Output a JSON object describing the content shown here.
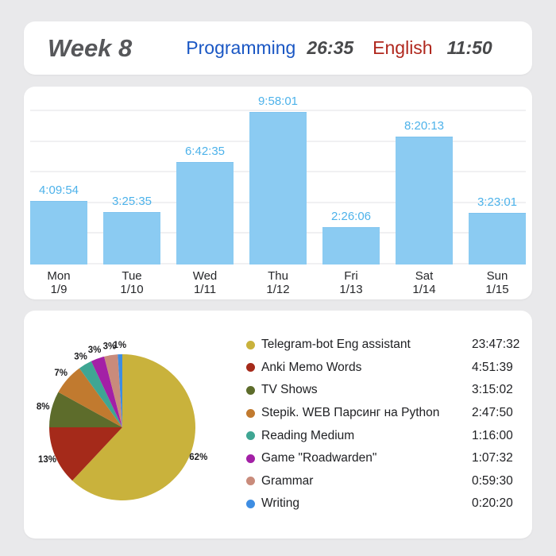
{
  "header": {
    "title": "Week 8",
    "stats": [
      {
        "label": "Programming",
        "value": "26:35",
        "label_color": "#1A57C4"
      },
      {
        "label": "English",
        "value": "11:50",
        "label_color": "#B0281E"
      }
    ]
  },
  "chart_data": [
    {
      "type": "bar",
      "days": [
        {
          "day": "Mon",
          "date": "1/9",
          "value_label": "4:09:54",
          "seconds": 14994
        },
        {
          "day": "Tue",
          "date": "1/10",
          "value_label": "3:25:35",
          "seconds": 12335
        },
        {
          "day": "Wed",
          "date": "1/11",
          "value_label": "6:42:35",
          "seconds": 24155
        },
        {
          "day": "Thu",
          "date": "1/12",
          "value_label": "9:58:01",
          "seconds": 35881
        },
        {
          "day": "Fri",
          "date": "1/13",
          "value_label": "2:26:06",
          "seconds": 8766
        },
        {
          "day": "Sat",
          "date": "1/14",
          "value_label": "8:20:13",
          "seconds": 30013
        },
        {
          "day": "Sun",
          "date": "1/15",
          "value_label": "3:23:01",
          "seconds": 12181
        }
      ],
      "ylim_hours": [
        0,
        11.6
      ],
      "gridline_every_hours": 2,
      "grid": true,
      "bar_color": "#8BCBF2",
      "value_label_color": "#4DB2EA"
    },
    {
      "type": "pie",
      "start_angle": "top-clockwise",
      "legend_position": "right",
      "slices": [
        {
          "label": "Telegram-bot Eng assistant",
          "time": "23:47:32",
          "percent": 62,
          "color": "#C9B23C"
        },
        {
          "label": "Anki Memo Words",
          "time": "4:51:39",
          "percent": 13,
          "color": "#A52A1A"
        },
        {
          "label": "TV Shows",
          "time": "3:15:02",
          "percent": 8,
          "color": "#5D6C2B"
        },
        {
          "label": "Stepik. WEB Парсинг на Python",
          "time": "2:47:50",
          "percent": 7,
          "color": "#C17A2F"
        },
        {
          "label": "Reading Medium",
          "time": "1:16:00",
          "percent": 3,
          "color": "#3FA693"
        },
        {
          "label": "Game \"Roadwarden\"",
          "time": "1:07:32",
          "percent": 3,
          "color": "#A320A6"
        },
        {
          "label": "Grammar",
          "time": "0:59:30",
          "percent": 3,
          "color": "#C98B7B"
        },
        {
          "label": "Writing",
          "time": "0:20:20",
          "percent": 1,
          "color": "#3E8DE2"
        }
      ]
    }
  ]
}
